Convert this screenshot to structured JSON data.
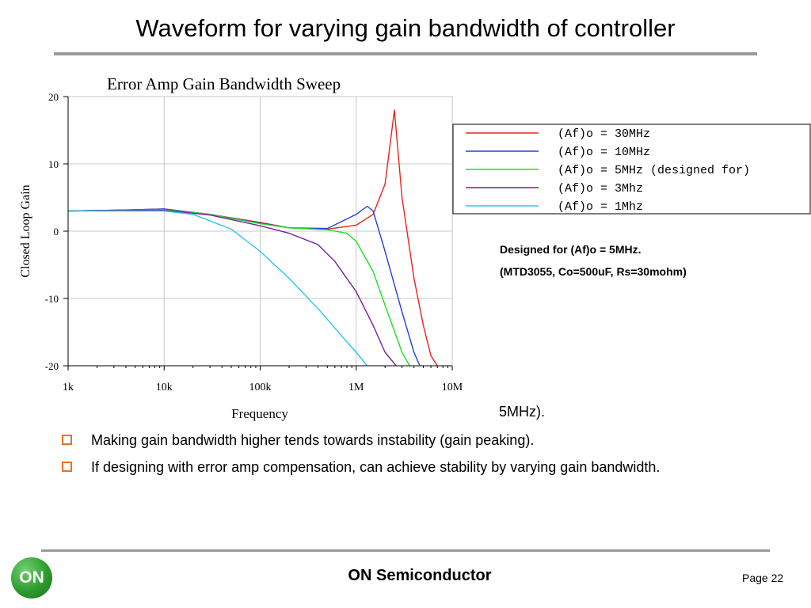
{
  "slide": {
    "title": "Waveform for varying gain bandwidth of controller",
    "note_line1": "Designed for (Af)o = 5MHz.",
    "note_line2": "(MTD3055, Co=500uF, Rs=30mohm)",
    "partial_text": "5MHz).",
    "bullets": [
      "Making gain bandwidth higher tends towards instability (gain peaking).",
      "If designing with error amp compensation, can achieve stability by varying gain bandwidth."
    ],
    "footer_brand": "ON Semiconductor",
    "page_label": "Page 22",
    "logo_text": "ON",
    "colors": {
      "bullet_box": "#e8711e",
      "logo_green": "#2e9b2e",
      "rule": "#999999"
    }
  },
  "chart_data": {
    "type": "line",
    "title": "Error Amp Gain Bandwidth Sweep",
    "xlabel": "Frequency",
    "ylabel": "Closed Loop Gain",
    "x_scale": "log",
    "xlim": [
      1000,
      10000000
    ],
    "ylim": [
      -20,
      20
    ],
    "x_tick_values": [
      1000,
      10000,
      100000,
      1000000,
      10000000
    ],
    "x_tick_labels": [
      "1k",
      "10k",
      "100k",
      "1M",
      "10M"
    ],
    "y_ticks": [
      20,
      10,
      0,
      -10,
      -20
    ],
    "grid": true,
    "legend_position": "right",
    "series": [
      {
        "name": "(Af)o = 30MHz",
        "color": "#e8231f",
        "x": [
          1000,
          3000,
          10000,
          30000,
          100000,
          200000,
          500000,
          1000000,
          1500000,
          2000000,
          2500000,
          3000000,
          4000000,
          5000000,
          6000000,
          7000000
        ],
        "y": [
          3,
          3.1,
          3.3,
          2.5,
          1.3,
          0.5,
          0.3,
          0.9,
          2.5,
          7,
          18,
          5,
          -7,
          -14,
          -18.5,
          -20
        ]
      },
      {
        "name": "(Af)o = 10MHz",
        "color": "#2b3fd6",
        "x": [
          1000,
          3000,
          10000,
          30000,
          100000,
          200000,
          500000,
          1000000,
          1300000,
          1500000,
          2000000,
          3000000,
          4000000,
          4600000
        ],
        "y": [
          3,
          3.1,
          3.3,
          2.5,
          1.2,
          0.5,
          0.4,
          2.5,
          3.7,
          3,
          -3,
          -12,
          -18,
          -20
        ]
      },
      {
        "name": "(Af)o = 5MHz (designed for)",
        "color": "#1fe01f",
        "x": [
          1000,
          3000,
          10000,
          30000,
          100000,
          200000,
          500000,
          800000,
          1000000,
          1500000,
          2000000,
          3000000,
          3600000
        ],
        "y": [
          3,
          3.1,
          3.2,
          2.5,
          1.1,
          0.5,
          0.2,
          -0.3,
          -1.5,
          -6,
          -11,
          -18,
          -20
        ]
      },
      {
        "name": "(Af)o = 3Mhz",
        "color": "#7a1f9a",
        "x": [
          1000,
          3000,
          10000,
          30000,
          100000,
          200000,
          400000,
          600000,
          1000000,
          1500000,
          2000000,
          2600000
        ],
        "y": [
          3,
          3.1,
          3.1,
          2.4,
          0.8,
          -0.3,
          -2,
          -4.5,
          -9,
          -14,
          -18,
          -20
        ]
      },
      {
        "name": "(Af)o = 1Mhz",
        "color": "#2bc6e0",
        "x": [
          1000,
          3000,
          10000,
          20000,
          50000,
          100000,
          200000,
          400000,
          700000,
          1000000,
          1300000
        ],
        "y": [
          3,
          3,
          3,
          2.5,
          0.3,
          -3,
          -7,
          -11.5,
          -15.5,
          -18,
          -20
        ]
      }
    ]
  }
}
